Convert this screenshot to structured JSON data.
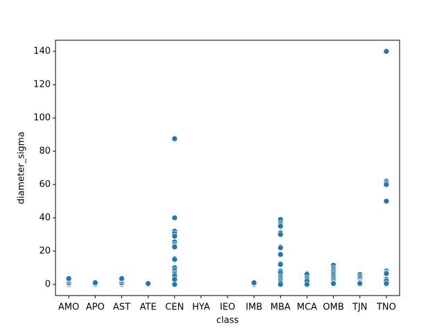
{
  "chart_data": {
    "type": "scatter",
    "x_label": "class",
    "y_label": "diameter_sigma",
    "categories": [
      "AMO",
      "APO",
      "AST",
      "ATE",
      "CEN",
      "HYA",
      "IEO",
      "IMB",
      "MBA",
      "MCA",
      "OMB",
      "TJN",
      "TNO"
    ],
    "ylim": [
      -6.7,
      146.7
    ],
    "yticks": [
      0,
      20,
      40,
      60,
      80,
      100,
      120,
      140
    ],
    "series": [
      {
        "color": "#1f77b4",
        "x": [
          "AMO",
          "AMO",
          "AMO",
          "AMO",
          "AMO",
          "AMO",
          "APO",
          "APO",
          "APO",
          "AST",
          "AST",
          "AST",
          "AST",
          "AST",
          "AST",
          "ATE",
          "ATE",
          "CEN",
          "CEN",
          "CEN",
          "CEN",
          "CEN",
          "CEN",
          "CEN",
          "CEN",
          "CEN",
          "CEN",
          "CEN",
          "CEN",
          "CEN",
          "CEN",
          "CEN",
          "CEN",
          "CEN",
          "CEN",
          "IMB",
          "IMB",
          "IMB",
          "MBA",
          "MBA",
          "MBA",
          "MBA",
          "MBA",
          "MBA",
          "MBA",
          "MBA",
          "MBA",
          "MBA",
          "MBA",
          "MBA",
          "MBA",
          "MBA",
          "MBA",
          "MBA",
          "MBA",
          "MBA",
          "MBA",
          "MCA",
          "MCA",
          "MCA",
          "MCA",
          "MCA",
          "MCA",
          "OMB",
          "OMB",
          "OMB",
          "OMB",
          "OMB",
          "OMB",
          "OMB",
          "OMB",
          "OMB",
          "OMB",
          "OMB",
          "OMB",
          "TJN",
          "TJN",
          "TJN",
          "TJN",
          "TJN",
          "TJN",
          "TJN",
          "TJN",
          "TNO",
          "TNO",
          "TNO",
          "TNO",
          "TNO",
          "TNO",
          "TNO",
          "TNO",
          "TNO",
          "TNO",
          "TNO"
        ],
        "values": [
          0,
          0.5,
          1,
          2,
          3,
          3.5,
          0,
          0.5,
          1,
          0,
          0.5,
          1,
          2,
          3,
          3.5,
          0,
          0.5,
          87.5,
          40,
          32,
          30.5,
          29,
          25.5,
          24,
          23,
          22.5,
          15.5,
          15,
          10,
          8.5,
          7,
          6,
          5,
          3,
          0,
          0,
          0.5,
          1,
          39,
          37,
          36,
          35,
          31,
          30,
          22.5,
          22,
          18,
          12.5,
          12,
          8,
          7,
          5,
          4,
          3,
          2,
          1,
          0,
          6.5,
          6,
          4,
          3,
          2,
          0,
          11.5,
          10,
          9,
          8,
          7,
          6,
          5,
          4,
          3,
          2,
          1,
          0.5,
          6,
          5,
          4,
          3,
          2,
          1.5,
          1,
          0.5,
          140,
          62,
          61,
          60,
          50,
          8,
          7,
          6.5,
          3,
          2,
          0.5
        ]
      }
    ]
  }
}
